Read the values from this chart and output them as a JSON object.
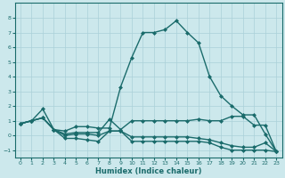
{
  "xlabel": "Humidex (Indice chaleur)",
  "ylabel": "",
  "bg_color": "#cce8ec",
  "grid_color": "#aad0d8",
  "line_color": "#1a6b6b",
  "xlim": [
    -0.5,
    23.5
  ],
  "ylim": [
    -1.5,
    9.0
  ],
  "yticks": [
    -1,
    0,
    1,
    2,
    3,
    4,
    5,
    6,
    7,
    8
  ],
  "xticks": [
    0,
    1,
    2,
    3,
    4,
    5,
    6,
    7,
    8,
    9,
    10,
    11,
    12,
    13,
    14,
    15,
    16,
    17,
    18,
    19,
    20,
    21,
    22,
    23
  ],
  "series": [
    {
      "x": [
        0,
        1,
        2,
        3,
        4,
        5,
        6,
        7,
        8,
        9,
        10,
        11,
        12,
        13,
        14,
        15,
        16,
        17,
        18,
        19,
        20,
        21,
        22,
        23
      ],
      "y": [
        0.8,
        1.0,
        1.8,
        0.4,
        0.3,
        0.6,
        0.6,
        0.5,
        0.5,
        3.3,
        5.3,
        7.0,
        7.0,
        7.2,
        7.8,
        7.0,
        6.3,
        4.0,
        2.7,
        2.0,
        1.4,
        1.4,
        0.1,
        -1.1
      ],
      "marker": "D",
      "markersize": 2.0,
      "linewidth": 1.0
    },
    {
      "x": [
        0,
        1,
        2,
        3,
        4,
        5,
        6,
        7,
        8,
        9,
        10,
        11,
        12,
        13,
        14,
        15,
        16,
        17,
        18,
        19,
        20,
        21,
        22,
        23
      ],
      "y": [
        0.8,
        1.0,
        1.2,
        0.4,
        0.1,
        0.2,
        0.2,
        0.2,
        1.1,
        0.4,
        1.0,
        1.0,
        1.0,
        1.0,
        1.0,
        1.0,
        1.1,
        1.0,
        1.0,
        1.3,
        1.3,
        0.7,
        0.7,
        -1.1
      ],
      "marker": "D",
      "markersize": 2.0,
      "linewidth": 1.0
    },
    {
      "x": [
        0,
        1,
        2,
        3,
        4,
        5,
        6,
        7,
        8,
        9,
        10,
        11,
        12,
        13,
        14,
        15,
        16,
        17,
        18,
        19,
        20,
        21,
        22,
        23
      ],
      "y": [
        0.8,
        1.0,
        1.2,
        0.4,
        0.0,
        0.1,
        0.1,
        0.0,
        0.3,
        0.3,
        -0.1,
        -0.1,
        -0.1,
        -0.1,
        -0.1,
        -0.1,
        -0.2,
        -0.3,
        -0.5,
        -0.7,
        -0.8,
        -0.8,
        -0.5,
        -1.1
      ],
      "marker": "D",
      "markersize": 2.0,
      "linewidth": 1.0
    },
    {
      "x": [
        0,
        1,
        2,
        3,
        4,
        5,
        6,
        7,
        8,
        9,
        10,
        11,
        12,
        13,
        14,
        15,
        16,
        17,
        18,
        19,
        20,
        21,
        22,
        23
      ],
      "y": [
        0.8,
        1.0,
        1.2,
        0.4,
        -0.2,
        -0.2,
        -0.3,
        -0.4,
        0.3,
        0.3,
        -0.4,
        -0.4,
        -0.4,
        -0.4,
        -0.4,
        -0.4,
        -0.4,
        -0.5,
        -0.8,
        -1.0,
        -1.0,
        -1.0,
        -1.0,
        -1.1
      ],
      "marker": "D",
      "markersize": 2.0,
      "linewidth": 1.0
    }
  ]
}
